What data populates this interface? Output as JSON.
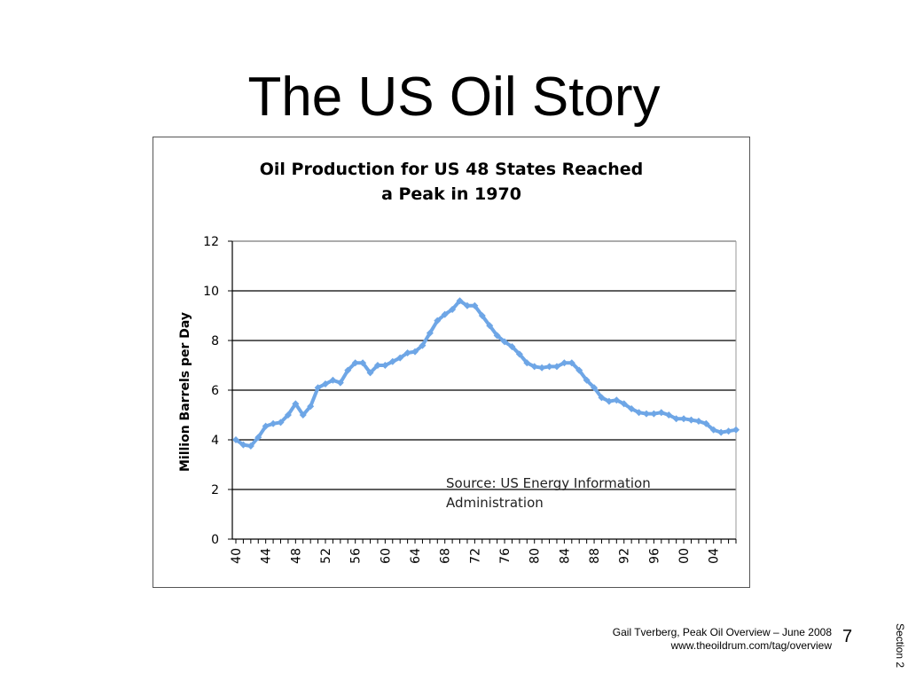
{
  "slide": {
    "title": "The US Oil Story",
    "footer_line1": "Gail Tverberg, Peak Oil Overview – June 2008",
    "footer_line2": "www.theoildrum.com/tag/overview",
    "page_number": "7",
    "section_label": "Section 2"
  },
  "chart_data": {
    "type": "line",
    "title_line1": "Oil Production for US 48 States Reached",
    "title_line2": "a Peak in 1970",
    "xlabel": "",
    "ylabel": "Million Barrels per Day",
    "ylim": [
      0,
      12
    ],
    "xlim": [
      1940,
      2007
    ],
    "yticks": [
      0,
      2,
      4,
      6,
      8,
      10,
      12
    ],
    "xtick_labels": [
      {
        "year": 1940,
        "label": "40"
      },
      {
        "year": 1944,
        "label": "44"
      },
      {
        "year": 1948,
        "label": "48"
      },
      {
        "year": 1952,
        "label": "52"
      },
      {
        "year": 1956,
        "label": "56"
      },
      {
        "year": 1960,
        "label": "60"
      },
      {
        "year": 1964,
        "label": "64"
      },
      {
        "year": 1968,
        "label": "68"
      },
      {
        "year": 1972,
        "label": "72"
      },
      {
        "year": 1976,
        "label": "76"
      },
      {
        "year": 1980,
        "label": "80"
      },
      {
        "year": 1984,
        "label": "84"
      },
      {
        "year": 1988,
        "label": "88"
      },
      {
        "year": 1992,
        "label": "92"
      },
      {
        "year": 1996,
        "label": "96"
      },
      {
        "year": 2000,
        "label": "00"
      },
      {
        "year": 2004,
        "label": "04"
      }
    ],
    "grid": "horizontal",
    "annotation_line1": "Source: US Energy Information",
    "annotation_line2": "Administration",
    "series_color": "#6ea6e6",
    "x": [
      1940,
      1941,
      1942,
      1943,
      1944,
      1945,
      1946,
      1947,
      1948,
      1949,
      1950,
      1951,
      1952,
      1953,
      1954,
      1955,
      1956,
      1957,
      1958,
      1959,
      1960,
      1961,
      1962,
      1963,
      1964,
      1965,
      1966,
      1967,
      1968,
      1969,
      1970,
      1971,
      1972,
      1973,
      1974,
      1975,
      1976,
      1977,
      1978,
      1979,
      1980,
      1981,
      1982,
      1983,
      1984,
      1985,
      1986,
      1987,
      1988,
      1989,
      1990,
      1991,
      1992,
      1993,
      1994,
      1995,
      1996,
      1997,
      1998,
      1999,
      2000,
      2001,
      2002,
      2003,
      2004,
      2005,
      2006,
      2007
    ],
    "y": [
      4.0,
      3.8,
      3.75,
      4.1,
      4.55,
      4.65,
      4.7,
      5.0,
      5.45,
      5.0,
      5.35,
      6.1,
      6.25,
      6.4,
      6.3,
      6.8,
      7.1,
      7.1,
      6.7,
      7.0,
      7.0,
      7.15,
      7.3,
      7.5,
      7.55,
      7.8,
      8.3,
      8.8,
      9.05,
      9.25,
      9.6,
      9.4,
      9.4,
      9.0,
      8.6,
      8.2,
      7.95,
      7.75,
      7.45,
      7.1,
      6.95,
      6.9,
      6.95,
      6.95,
      7.1,
      7.1,
      6.8,
      6.4,
      6.1,
      5.7,
      5.55,
      5.6,
      5.45,
      5.25,
      5.1,
      5.05,
      5.05,
      5.1,
      5.0,
      4.85,
      4.85,
      4.8,
      4.75,
      4.65,
      4.4,
      4.3,
      4.35,
      4.4
    ]
  }
}
